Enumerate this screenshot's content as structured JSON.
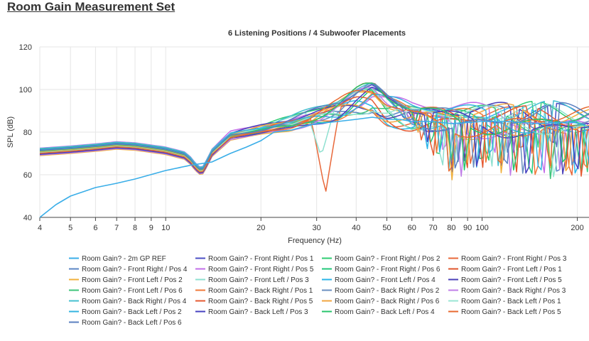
{
  "page": {
    "title": "Room Gain Measurement Set"
  },
  "chart_data": {
    "type": "line",
    "title": "6 Listening Positions / 4 Subwoofer Placements",
    "xlabel": "Frequency (Hz)",
    "ylabel": "SPL (dB)",
    "x_scale": "log",
    "xlim": [
      4,
      220
    ],
    "ylim": [
      40,
      120
    ],
    "x_ticks": [
      4,
      5,
      6,
      7,
      8,
      9,
      10,
      20,
      30,
      40,
      50,
      60,
      70,
      80,
      90,
      100,
      200
    ],
    "y_ticks": [
      40,
      60,
      80,
      100,
      120
    ],
    "grid": true,
    "legend_position": "bottom",
    "reference_series": {
      "name": "Room Gain? - 2m GP REF",
      "color": "#3aaee8",
      "x": [
        4,
        4.5,
        5,
        6,
        7,
        8,
        10,
        12,
        14,
        16,
        18,
        20,
        22,
        25,
        28,
        30,
        35,
        40,
        45,
        50,
        55,
        60,
        70,
        80,
        100,
        120,
        150,
        200
      ],
      "values": [
        40,
        46,
        50,
        54,
        56,
        58,
        62,
        64.5,
        66,
        70,
        73,
        76,
        80,
        81,
        83,
        84,
        85,
        86,
        87,
        86,
        86,
        85,
        85,
        84,
        85,
        85,
        84,
        85
      ]
    },
    "series": [
      {
        "name": "Room Gain? - Front Right / Pos 1",
        "color": "#4b4fc4",
        "base": 0.5,
        "phase": 0.3,
        "dip": 0
      },
      {
        "name": "Room Gain? - Front Right / Pos 2",
        "color": "#2ecc71",
        "base": 1.5,
        "phase": 1.1,
        "dip": 1
      },
      {
        "name": "Room Gain? - Front Right / Pos 3",
        "color": "#e8683a",
        "base": -1,
        "phase": 2.0,
        "dip": 2
      },
      {
        "name": "Room Gain? - Front Right / Pos 4",
        "color": "#5b86c4",
        "base": 0,
        "phase": 2.7,
        "dip": 3
      },
      {
        "name": "Room Gain? - Front Right / Pos 5",
        "color": "#c26ee8",
        "base": 2,
        "phase": 3.5,
        "dip": 4
      },
      {
        "name": "Room Gain? - Front Right / Pos 6",
        "color": "#21c77a",
        "base": -0.5,
        "phase": 4.2,
        "dip": 5
      },
      {
        "name": "Room Gain? - Front Left / Pos 1",
        "color": "#e0552b",
        "base": 1,
        "phase": 5.0,
        "dip": 6
      },
      {
        "name": "Room Gain? - Front Left / Pos 2",
        "color": "#f0b03c",
        "base": -1.5,
        "phase": 5.8,
        "dip": 7
      },
      {
        "name": "Room Gain? - Front Left / Pos 3",
        "color": "#8ee0d0",
        "base": 0.8,
        "phase": 0.9,
        "dip": 8
      },
      {
        "name": "Room Gain? - Front Left / Pos 4",
        "color": "#2ab5e8",
        "base": -0.8,
        "phase": 1.7,
        "dip": 9
      },
      {
        "name": "Room Gain? - Front Left / Pos 5",
        "color": "#4a3fb8",
        "base": 1.2,
        "phase": 2.4,
        "dip": 10
      },
      {
        "name": "Room Gain? - Front Left / Pos 6",
        "color": "#3cc47a",
        "base": 0.2,
        "phase": 3.1,
        "dip": 11
      },
      {
        "name": "Room Gain? - Back Right / Pos 1",
        "color": "#f07a3a",
        "base": -0.3,
        "phase": 3.9,
        "dip": 12
      },
      {
        "name": "Room Gain? - Back Right / Pos 2",
        "color": "#6a8fc0",
        "base": 0.6,
        "phase": 4.6,
        "dip": 13
      },
      {
        "name": "Room Gain? - Back Right / Pos 3",
        "color": "#c07ee8",
        "base": -1.2,
        "phase": 5.3,
        "dip": 14
      },
      {
        "name": "Room Gain? - Back Right / Pos 4",
        "color": "#45c0d0",
        "base": 1.8,
        "phase": 0.5,
        "dip": 15
      },
      {
        "name": "Room Gain? - Back Right / Pos 5",
        "color": "#e65a32",
        "base": -0.6,
        "phase": 1.4,
        "dip": 16
      },
      {
        "name": "Room Gain? - Back Right / Pos 6",
        "color": "#f2a640",
        "base": 0.4,
        "phase": 2.2,
        "dip": 17
      },
      {
        "name": "Room Gain? - Back Left / Pos 1",
        "color": "#9ae6d4",
        "base": -0.2,
        "phase": 2.9,
        "dip": 18
      },
      {
        "name": "Room Gain? - Back Left / Pos 2",
        "color": "#33b4e0",
        "base": 1.1,
        "phase": 3.7,
        "dip": 19
      },
      {
        "name": "Room Gain? - Back Left / Pos 3",
        "color": "#4640c0",
        "base": -0.9,
        "phase": 4.4,
        "dip": 20
      },
      {
        "name": "Room Gain? - Back Left / Pos 4",
        "color": "#27c46c",
        "base": 0.7,
        "phase": 5.1,
        "dip": 21
      },
      {
        "name": "Room Gain? - Back Left / Pos 5",
        "color": "#e86a30",
        "base": -0.4,
        "phase": 5.9,
        "dip": 22
      },
      {
        "name": "Room Gain? - Back Left / Pos 6",
        "color": "#5a7fc0",
        "base": 0.9,
        "phase": 0.1,
        "dip": 23
      }
    ],
    "legend_items": [
      "Room Gain? - 2m GP REF",
      "Room Gain? - Front Right / Pos 1",
      "Room Gain? - Front Right / Pos 2",
      "Room Gain? - Front Right / Pos 3",
      "Room Gain? - Front Right / Pos 4",
      "Room Gain? - Front Right / Pos 5",
      "Room Gain? - Front Right / Pos 6",
      "Room Gain? - Front Left / Pos 1",
      "Room Gain? - Front Left / Pos 2",
      "Room Gain? - Front Left / Pos 3",
      "Room Gain? - Front Left / Pos 4",
      "Room Gain? - Front Left / Pos 5",
      "Room Gain? - Front Left / Pos 6",
      "Room Gain? - Back Right / Pos 1",
      "Room Gain? - Back Right / Pos 2",
      "Room Gain? - Back Right / Pos 3",
      "Room Gain? - Back Right / Pos 4",
      "Room Gain? - Back Right / Pos 5",
      "Room Gain? - Back Right / Pos 6",
      "Room Gain? - Back Left / Pos 1",
      "Room Gain? - Back Left / Pos 2",
      "Room Gain? - Back Left / Pos 3",
      "Room Gain? - Back Left / Pos 4",
      "Room Gain? - Back Left / Pos 5",
      "Room Gain? - Back Left / Pos 6"
    ],
    "legend_colors": [
      "#3aaee8",
      "#4b4fc4",
      "#2ecc71",
      "#e8683a",
      "#5b86c4",
      "#c26ee8",
      "#21c77a",
      "#e0552b",
      "#f0b03c",
      "#8ee0d0",
      "#2ab5e8",
      "#4a3fb8",
      "#3cc47a",
      "#f07a3a",
      "#6a8fc0",
      "#c07ee8",
      "#45c0d0",
      "#e65a32",
      "#f2a640",
      "#9ae6d4",
      "#33b4e0",
      "#4640c0",
      "#27c46c",
      "#e86a30",
      "#5a7fc0"
    ]
  }
}
